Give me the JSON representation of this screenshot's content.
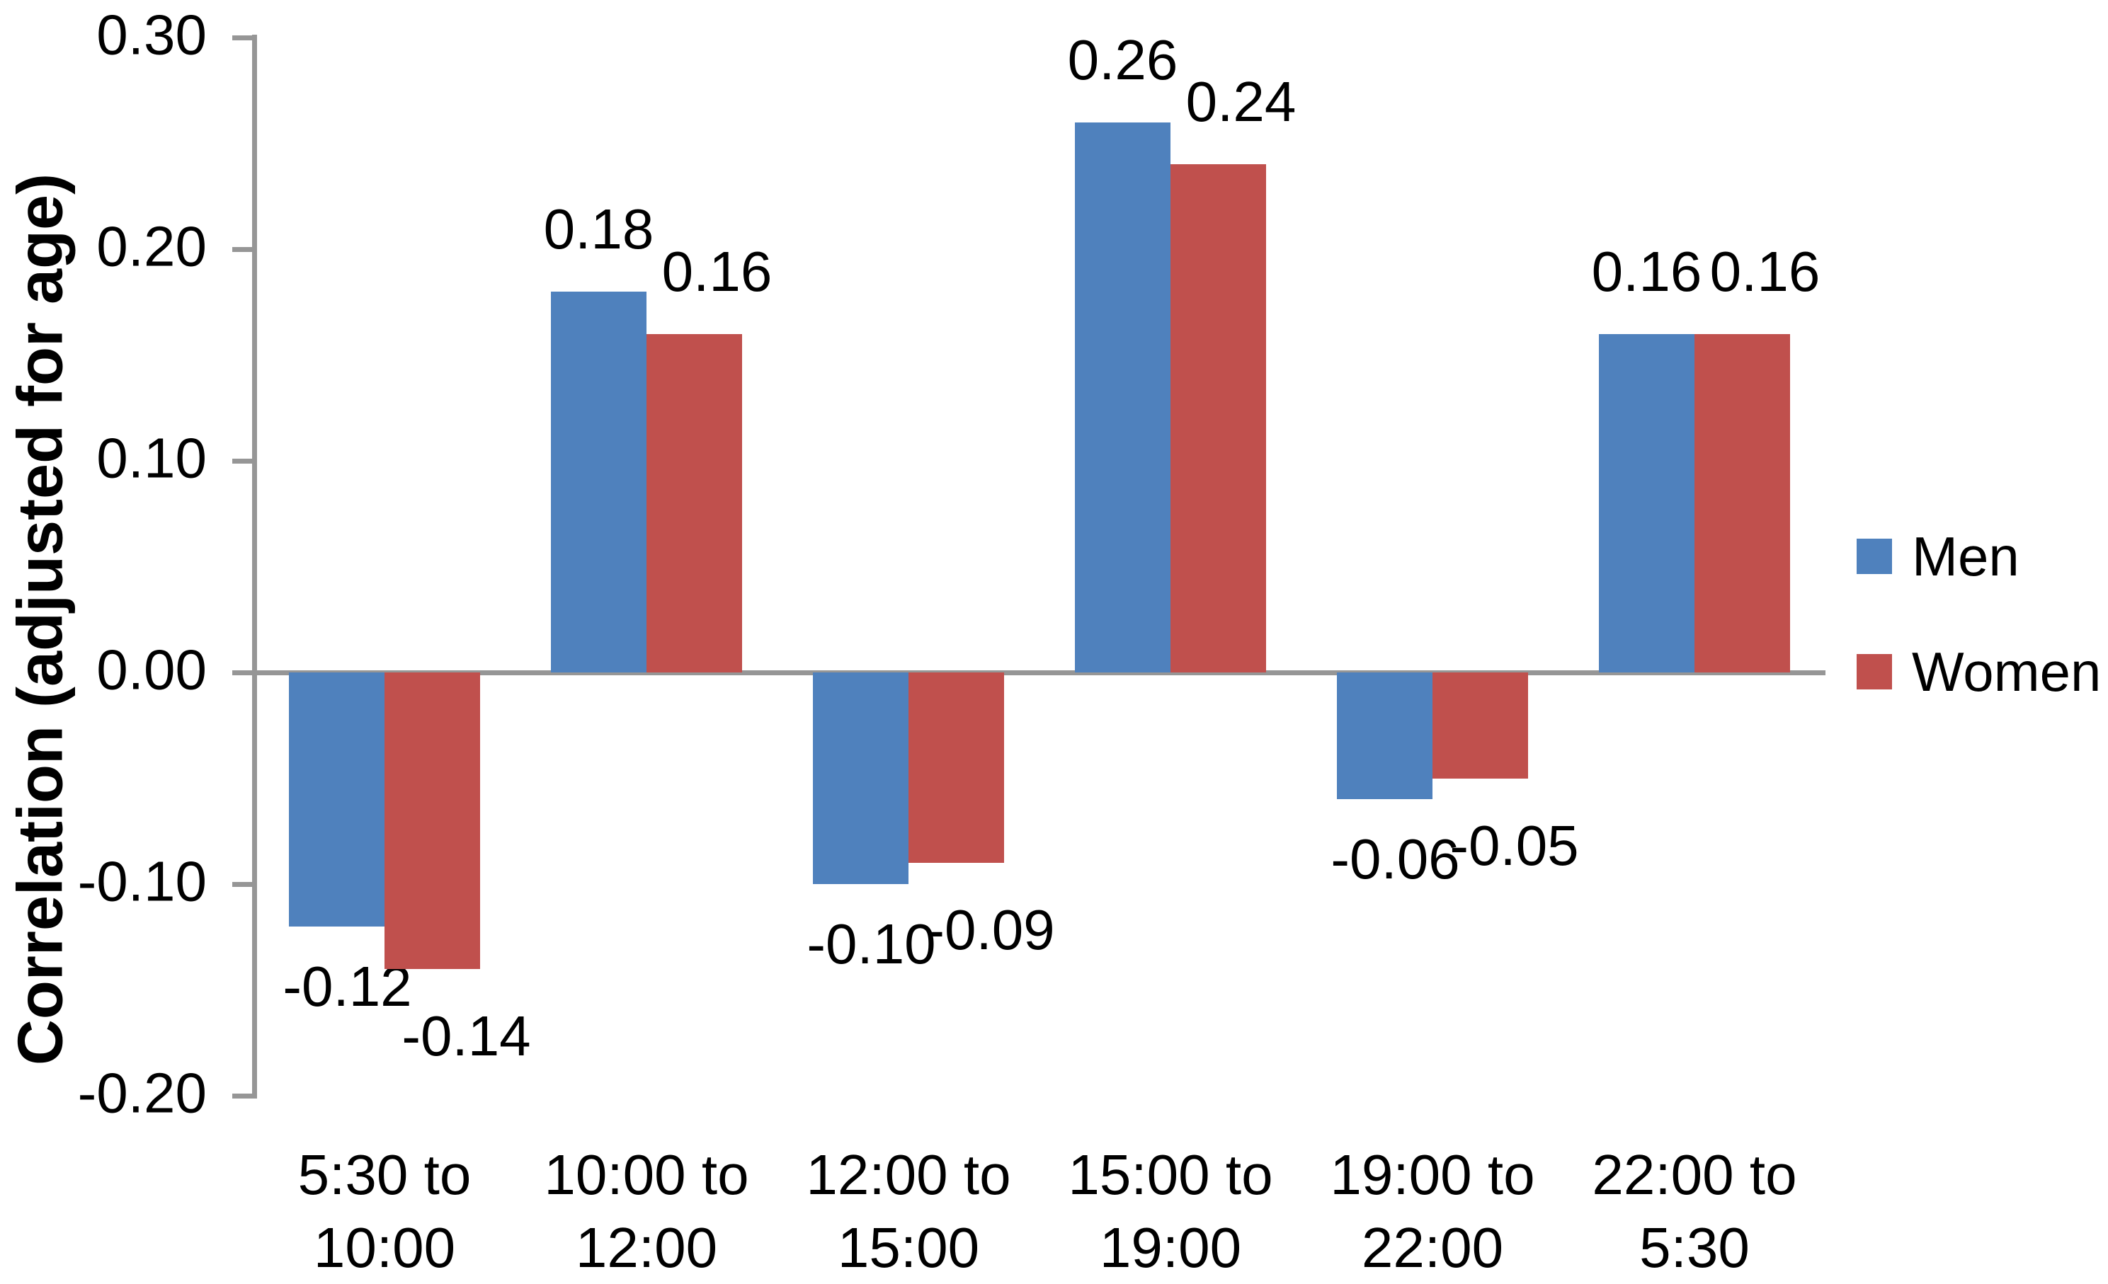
{
  "chart_data": {
    "type": "bar",
    "title": "",
    "xlabel": "",
    "ylabel": "Correlation (adjusted for age)",
    "ylim": [
      -0.2,
      0.3
    ],
    "grid": false,
    "legend_position": "right",
    "axis_color": "#969696",
    "text_color": "#000000",
    "background_color": "#ffffff",
    "categories": [
      [
        "5:30 to",
        "10:00"
      ],
      [
        "10:00 to",
        "12:00"
      ],
      [
        "12:00 to",
        "15:00"
      ],
      [
        "15:00 to",
        "19:00"
      ],
      [
        "19:00 to",
        "22:00"
      ],
      [
        "22:00 to",
        "5:30"
      ]
    ],
    "series": [
      {
        "name": "Men",
        "color": "#4F81BD",
        "values": [
          -0.12,
          0.18,
          -0.1,
          0.26,
          -0.06,
          0.16
        ],
        "labels": [
          "-0.12",
          "0.18",
          "-0.10",
          "0.26",
          "-0.06",
          "0.16"
        ]
      },
      {
        "name": "Women",
        "color": "#C0504D",
        "values": [
          -0.14,
          0.16,
          -0.09,
          0.24,
          -0.05,
          0.16
        ],
        "labels": [
          "-0.14",
          "0.16",
          "-0.09",
          "0.24",
          "-0.05",
          "0.16"
        ]
      }
    ],
    "yticks": [
      {
        "value": 0.3,
        "label": "0.30"
      },
      {
        "value": 0.2,
        "label": "0.20"
      },
      {
        "value": 0.1,
        "label": "0.10"
      },
      {
        "value": 0.0,
        "label": "0.00"
      },
      {
        "value": -0.1,
        "label": "-0.10"
      },
      {
        "value": -0.2,
        "label": "-0.20"
      }
    ]
  }
}
